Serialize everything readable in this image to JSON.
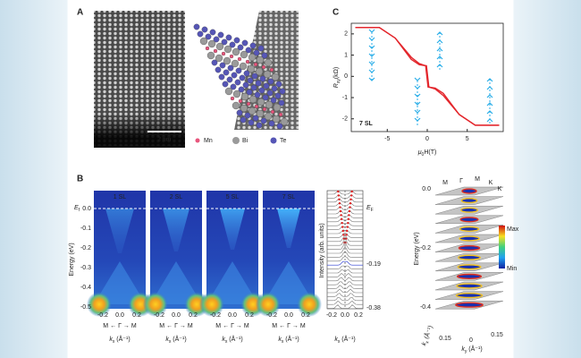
{
  "panel_a": {
    "label": "A",
    "scale_bar": "2 nm",
    "legend": [
      "Mn",
      "Bi",
      "Te"
    ]
  },
  "panel_b": {
    "label": "B",
    "arpes": {
      "panels": [
        "1 SL",
        "2 SL",
        "5 SL",
        "7 SL"
      ],
      "fermi": {
        "symbol": "E",
        "sub": "f"
      },
      "y_label": "Energy (eV)",
      "yticks": [
        "0.0",
        "-0.1",
        "-0.2",
        "-0.3",
        "-0.4",
        "-0.5"
      ],
      "xticks": [
        "-0.2",
        "0.0",
        "0.2"
      ],
      "path": [
        "M",
        "Γ",
        "M"
      ],
      "x_label": {
        "symbol": "k",
        "sub": "x",
        "unit": " (Å⁻¹)"
      }
    },
    "edc": {
      "fermi": {
        "symbol": "E",
        "sub": "F"
      },
      "energies": [
        "-0.19",
        "-0.38"
      ],
      "y_label": "Intensity (arb. units)",
      "xticks": [
        "-0.2",
        "0.0",
        "0.2"
      ],
      "x_label": {
        "symbol": "k",
        "sub": "x",
        "unit": " (Å⁻¹)"
      }
    },
    "stack": {
      "yticks": [
        "0.0",
        "-0.2",
        "-0.4"
      ],
      "y_label": "Energy (eV)",
      "colorbar": [
        "Max",
        "Min"
      ],
      "path": [
        "M",
        "Γ",
        "M",
        "K",
        "K"
      ],
      "kx_label": {
        "symbol": "k",
        "sub": "x",
        "unit": " (Å⁻¹)"
      },
      "ky_label": {
        "symbol": "k",
        "sub": "y",
        "unit": " (Å⁻¹)"
      },
      "kticks": [
        "0.15",
        "0",
        "0.15"
      ]
    }
  },
  "panel_c": {
    "label": "C",
    "type": "line",
    "annotation": "7 SL",
    "ylabel": {
      "symbol": "R",
      "sub": "xy",
      "unit": "(kΩ)"
    },
    "xlabel": {
      "symbol": "μ",
      "sub": "0",
      "unit": "H(T)"
    },
    "xlim": [
      -9.5,
      9.5
    ],
    "ylim": [
      -2.6,
      2.5
    ],
    "xticks": [
      -5,
      0,
      5
    ],
    "yticks": [
      2,
      1,
      0,
      -1,
      -2
    ],
    "series": [
      {
        "color": "#e3262c",
        "x": [
          -9,
          -6,
          -4,
          -2,
          -1,
          -0.1,
          0.2,
          1,
          2,
          4,
          6,
          9
        ],
        "values": [
          2.3,
          2.3,
          1.8,
          0.8,
          0.55,
          0.5,
          -0.5,
          -0.6,
          -0.9,
          -1.8,
          -2.3,
          -2.3
        ]
      },
      {
        "color": "#e3262c",
        "x": [
          -9,
          -6,
          -4,
          -2,
          -1,
          -0.2,
          0.1,
          1,
          2,
          4,
          6,
          9
        ],
        "values": [
          2.3,
          2.3,
          1.8,
          0.9,
          0.6,
          0.5,
          -0.5,
          -0.55,
          -0.8,
          -1.8,
          -2.3,
          -2.3
        ]
      }
    ]
  }
}
